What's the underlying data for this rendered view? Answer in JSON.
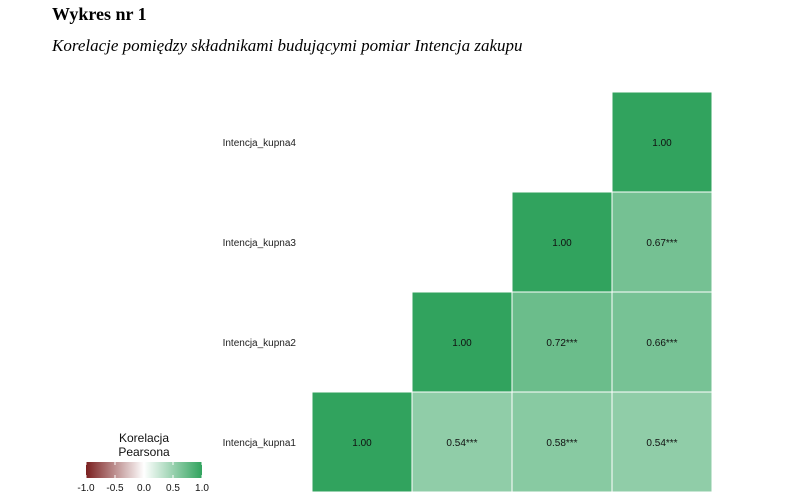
{
  "header": {
    "title": "Wykres nr 1",
    "subtitle": "Korelacje pomiędzy składnikami budującymi pomiar Intencja zakupu"
  },
  "chart_data": {
    "type": "heatmap",
    "variables": [
      "Intencja_kupna1",
      "Intencja_kupna2",
      "Intencja_kupna3",
      "Intencja_kupna4"
    ],
    "cells": [
      {
        "row": "Intencja_kupna4",
        "col": 4,
        "value": 1.0,
        "label": "1.00"
      },
      {
        "row": "Intencja_kupna3",
        "col": 3,
        "value": 1.0,
        "label": "1.00"
      },
      {
        "row": "Intencja_kupna3",
        "col": 4,
        "value": 0.67,
        "label": "0.67***"
      },
      {
        "row": "Intencja_kupna2",
        "col": 2,
        "value": 1.0,
        "label": "1.00"
      },
      {
        "row": "Intencja_kupna2",
        "col": 3,
        "value": 0.72,
        "label": "0.72***"
      },
      {
        "row": "Intencja_kupna2",
        "col": 4,
        "value": 0.66,
        "label": "0.66***"
      },
      {
        "row": "Intencja_kupna1",
        "col": 1,
        "value": 1.0,
        "label": "1.00"
      },
      {
        "row": "Intencja_kupna1",
        "col": 2,
        "value": 0.54,
        "label": "0.54***"
      },
      {
        "row": "Intencja_kupna1",
        "col": 3,
        "value": 0.58,
        "label": "0.58***"
      },
      {
        "row": "Intencja_kupna1",
        "col": 4,
        "value": 0.54,
        "label": "0.54***"
      }
    ],
    "legend": {
      "title_line1": "Korelacja",
      "title_line2": "Pearsona",
      "ticks": [
        "-1.0",
        "-0.5",
        "0.0",
        "0.5",
        "1.0"
      ],
      "range": [
        -1,
        1
      ],
      "placement": "bottom-left"
    },
    "colors": {
      "low": "#7a1f1f",
      "mid": "#ffffff",
      "high": "#31a35e"
    }
  }
}
